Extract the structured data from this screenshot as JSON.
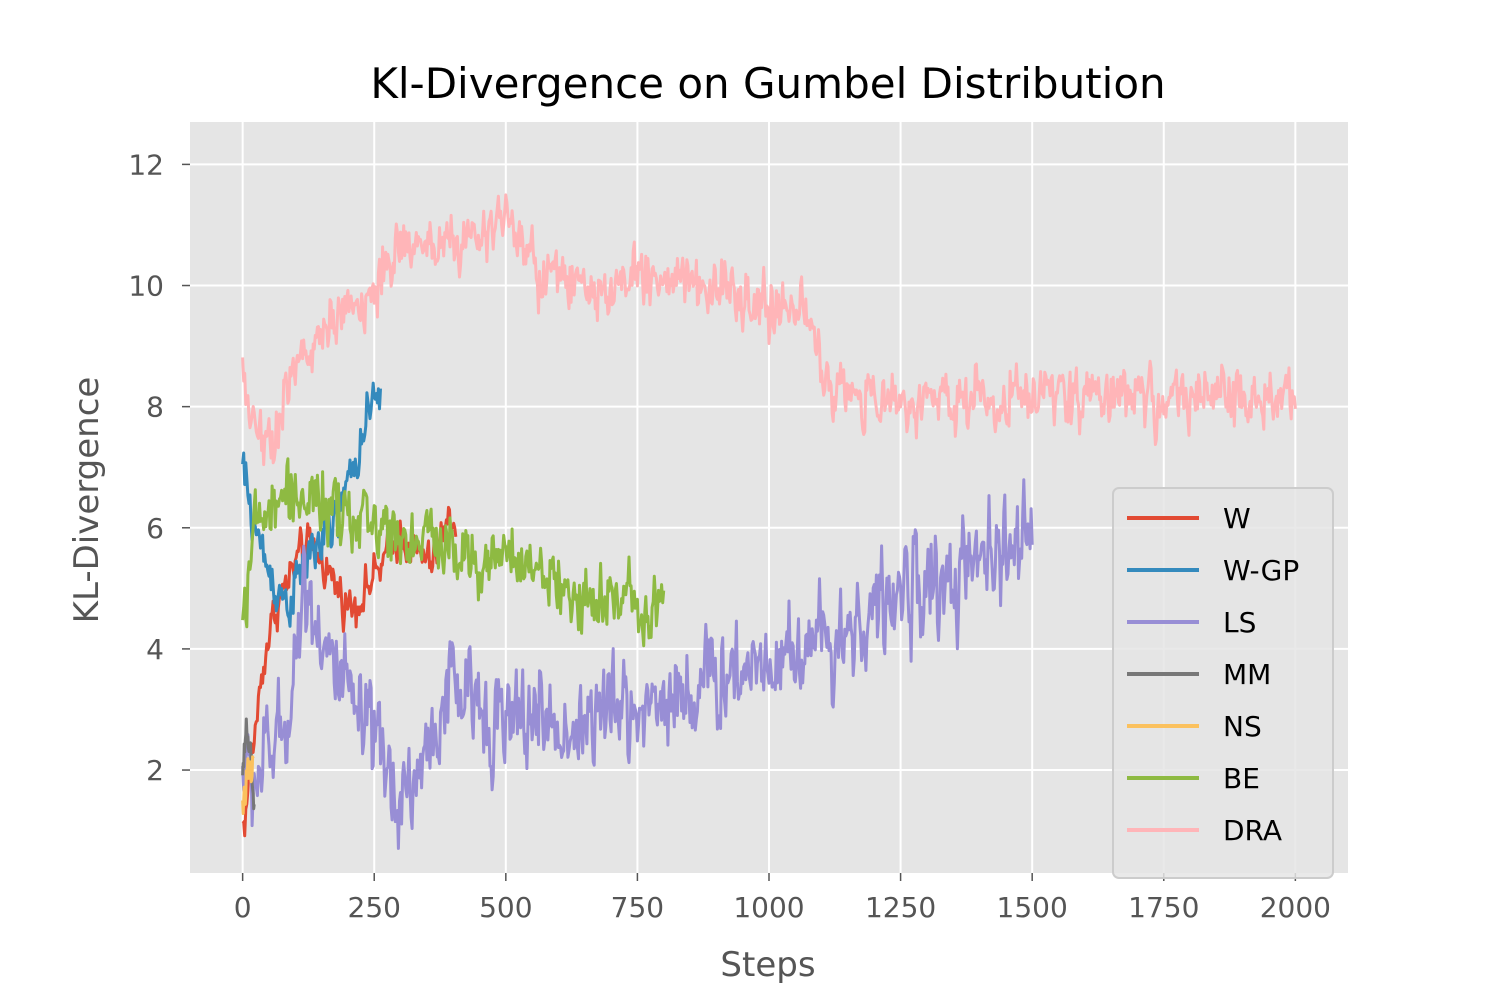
{
  "chart_data": {
    "type": "line",
    "title": "Kl-Divergence on Gumbel Distribution",
    "xlabel": "Steps",
    "ylabel": "KL-Divergence",
    "xlim": [
      -100,
      2100
    ],
    "ylim": [
      0.3,
      12.7
    ],
    "xticks": [
      0,
      250,
      500,
      750,
      1000,
      1250,
      1500,
      1750,
      2000
    ],
    "yticks": [
      2,
      4,
      6,
      8,
      10,
      12
    ],
    "grid": true,
    "legend_position": "lower-right",
    "style": "ggplot",
    "background": "#E5E5E5",
    "series": [
      {
        "name": "W",
        "color": "#E24A33",
        "noise": 0.25,
        "x": [
          0,
          5,
          10,
          20,
          40,
          60,
          80,
          100,
          120,
          150,
          180,
          200,
          220,
          250,
          280,
          300,
          330,
          360,
          380,
          400,
          405
        ],
        "y": [
          1.1,
          1.2,
          1.7,
          2.4,
          3.8,
          4.6,
          5.0,
          5.4,
          5.7,
          5.5,
          5.0,
          4.7,
          4.8,
          5.2,
          5.6,
          5.9,
          5.6,
          5.4,
          5.9,
          6.2,
          5.9
        ]
      },
      {
        "name": "W-GP",
        "color": "#348ABD",
        "noise": 0.3,
        "x": [
          0,
          5,
          15,
          30,
          50,
          70,
          90,
          110,
          130,
          150,
          170,
          190,
          210,
          230,
          250,
          262
        ],
        "y": [
          7.0,
          6.8,
          6.3,
          5.8,
          5.3,
          4.9,
          4.8,
          5.2,
          5.6,
          5.8,
          6.0,
          6.4,
          7.0,
          7.6,
          8.0,
          8.2
        ]
      },
      {
        "name": "LS",
        "color": "#988ED5",
        "noise": 0.6,
        "x": [
          0,
          20,
          50,
          80,
          100,
          120,
          140,
          160,
          180,
          200,
          220,
          250,
          280,
          300,
          320,
          340,
          360,
          380,
          400,
          420,
          450,
          480,
          500,
          530,
          560,
          600,
          650,
          700,
          750,
          800,
          850,
          900,
          950,
          1000,
          1050,
          1100,
          1150,
          1200,
          1250,
          1300,
          1350,
          1400,
          1450,
          1500
        ],
        "y": [
          2.0,
          1.8,
          2.3,
          2.6,
          4.0,
          5.1,
          4.5,
          4.0,
          3.5,
          3.2,
          2.8,
          2.4,
          1.8,
          1.6,
          1.8,
          2.0,
          2.6,
          3.0,
          3.4,
          3.2,
          3.1,
          2.9,
          2.7,
          2.8,
          3.0,
          2.6,
          2.8,
          3.0,
          3.0,
          3.2,
          3.3,
          3.5,
          3.7,
          3.9,
          4.0,
          4.2,
          4.3,
          4.6,
          4.9,
          5.1,
          5.0,
          5.4,
          5.6,
          5.8
        ]
      },
      {
        "name": "MM",
        "color": "#777777",
        "noise": 0.25,
        "x": [
          0,
          5,
          10,
          15,
          20,
          22
        ],
        "y": [
          1.9,
          2.3,
          2.6,
          2.4,
          1.4,
          1.0
        ]
      },
      {
        "name": "NS",
        "color": "#FBC15E",
        "noise": 0.25,
        "x": [
          0,
          5,
          10,
          15,
          20
        ],
        "y": [
          1.5,
          1.7,
          1.9,
          1.8,
          2.1
        ]
      },
      {
        "name": "BE",
        "color": "#8EBA42",
        "noise": 0.4,
        "x": [
          0,
          10,
          30,
          60,
          90,
          120,
          160,
          200,
          250,
          300,
          350,
          400,
          450,
          500,
          550,
          600,
          650,
          700,
          750,
          800
        ],
        "y": [
          4.5,
          5.4,
          6.1,
          6.3,
          6.6,
          6.5,
          6.3,
          6.1,
          6.1,
          5.9,
          5.8,
          5.7,
          5.5,
          5.5,
          5.3,
          5.0,
          4.9,
          4.8,
          4.8,
          4.9
        ]
      },
      {
        "name": "DRA",
        "color": "#FFB5B8",
        "noise": 0.35,
        "x": [
          0,
          20,
          40,
          60,
          80,
          100,
          130,
          160,
          200,
          250,
          300,
          350,
          400,
          450,
          500,
          530,
          560,
          600,
          650,
          700,
          750,
          800,
          850,
          900,
          950,
          1000,
          1050,
          1090,
          1110,
          1150,
          1200,
          1300,
          1400,
          1500,
          1600,
          1700,
          1800,
          1900,
          2000
        ],
        "y": [
          8.4,
          7.9,
          7.4,
          7.6,
          8.2,
          8.6,
          9.0,
          9.3,
          9.5,
          10.0,
          10.6,
          10.8,
          10.7,
          10.8,
          11.1,
          10.6,
          10.2,
          10.1,
          9.8,
          9.9,
          10.1,
          10.2,
          10.1,
          10.0,
          9.7,
          9.6,
          9.6,
          9.2,
          8.3,
          8.2,
          8.1,
          8.1,
          8.2,
          8.2,
          8.2,
          8.2,
          8.1,
          8.1,
          8.1
        ]
      }
    ]
  }
}
